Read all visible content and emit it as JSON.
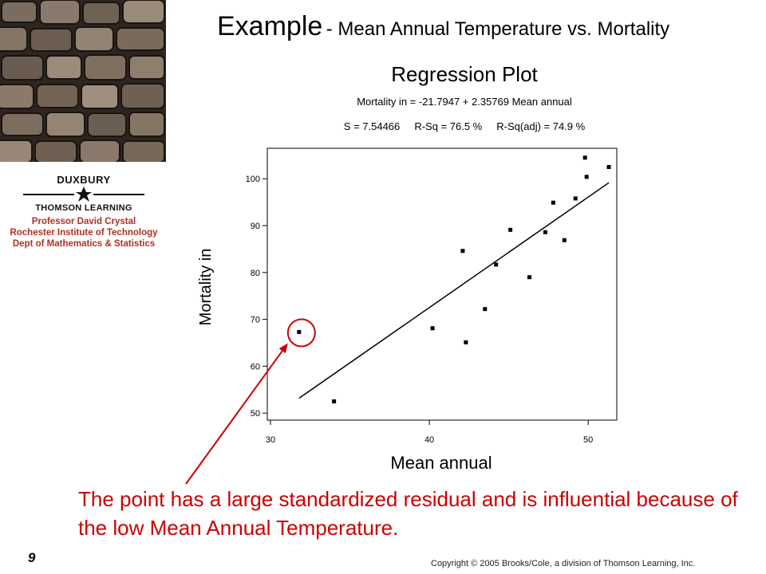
{
  "slide": {
    "title_main": "Example",
    "title_sub": "- Mean Annual Temperature vs. Mortality",
    "caption": "The point has a large standardized residual and is influential because of the low Mean Annual Temperature.",
    "slide_number": "9",
    "copyright": "Copyright © 2005 Brooks/Cole, a division of Thomson Learning, Inc."
  },
  "logo": {
    "brand_top": "DUXBURY",
    "brand_bottom": "THOMSON LEARNING",
    "credit_lines": [
      "Professor David Crystal",
      "Rochester Institute of Technology",
      "Dept of Mathematics & Statistics"
    ]
  },
  "colors": {
    "accent": "#cc0000",
    "credit_text": "#b03021"
  },
  "chart_data": {
    "type": "scatter",
    "title": "Regression Plot",
    "subtitle": "Mortality in = -21.7947 + 2.35769 Mean annual",
    "stats": "S = 7.54466     R-Sq = 76.5 %     R-Sq(adj) = 74.9 %",
    "xlabel": "Mean annual",
    "ylabel": "Mortality in",
    "xlim": [
      29.8,
      51.8
    ],
    "ylim": [
      48.5,
      106.5
    ],
    "xticks": [
      30,
      40,
      50
    ],
    "yticks": [
      50,
      60,
      70,
      80,
      90,
      100
    ],
    "grid": false,
    "points": [
      {
        "x": 31.8,
        "y": 67.3
      },
      {
        "x": 34.0,
        "y": 52.5
      },
      {
        "x": 40.2,
        "y": 68.1
      },
      {
        "x": 42.1,
        "y": 84.6
      },
      {
        "x": 42.3,
        "y": 65.1
      },
      {
        "x": 43.5,
        "y": 72.2
      },
      {
        "x": 44.2,
        "y": 81.7
      },
      {
        "x": 45.1,
        "y": 89.1
      },
      {
        "x": 46.3,
        "y": 79.0
      },
      {
        "x": 47.3,
        "y": 88.6
      },
      {
        "x": 47.8,
        "y": 94.9
      },
      {
        "x": 48.5,
        "y": 86.9
      },
      {
        "x": 49.2,
        "y": 95.8
      },
      {
        "x": 49.8,
        "y": 104.5
      },
      {
        "x": 49.9,
        "y": 100.4
      },
      {
        "x": 51.3,
        "y": 102.5
      }
    ],
    "regression": {
      "intercept": -21.7947,
      "slope": 2.35769,
      "x_range": [
        31.8,
        51.3
      ]
    },
    "highlight": {
      "x": 31.8,
      "y": 67.3
    }
  }
}
